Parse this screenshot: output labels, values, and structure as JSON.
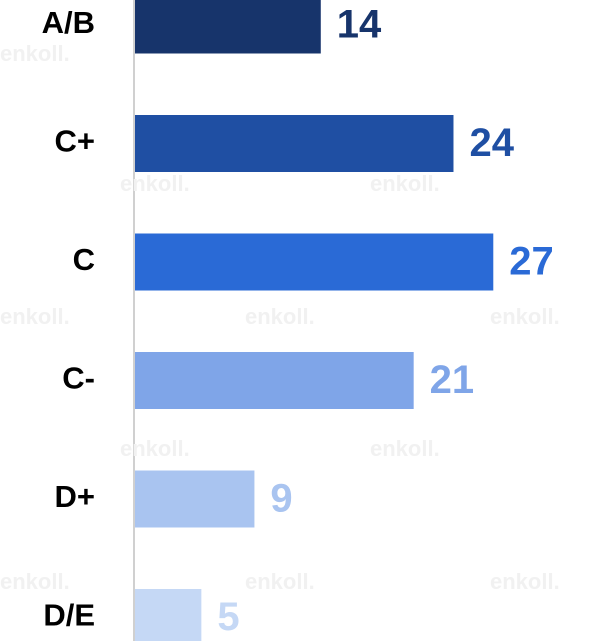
{
  "chart_data": {
    "type": "bar",
    "orientation": "horizontal",
    "categories": [
      "A/B",
      "C+",
      "C",
      "C-",
      "D+",
      "D/E"
    ],
    "values": [
      14,
      24,
      27,
      21,
      9,
      5
    ],
    "colors": [
      "#17346b",
      "#1f4fa3",
      "#2a6ad6",
      "#7fa5e8",
      "#a9c4f0",
      "#c5d8f5"
    ],
    "watermark": "enkoll."
  }
}
